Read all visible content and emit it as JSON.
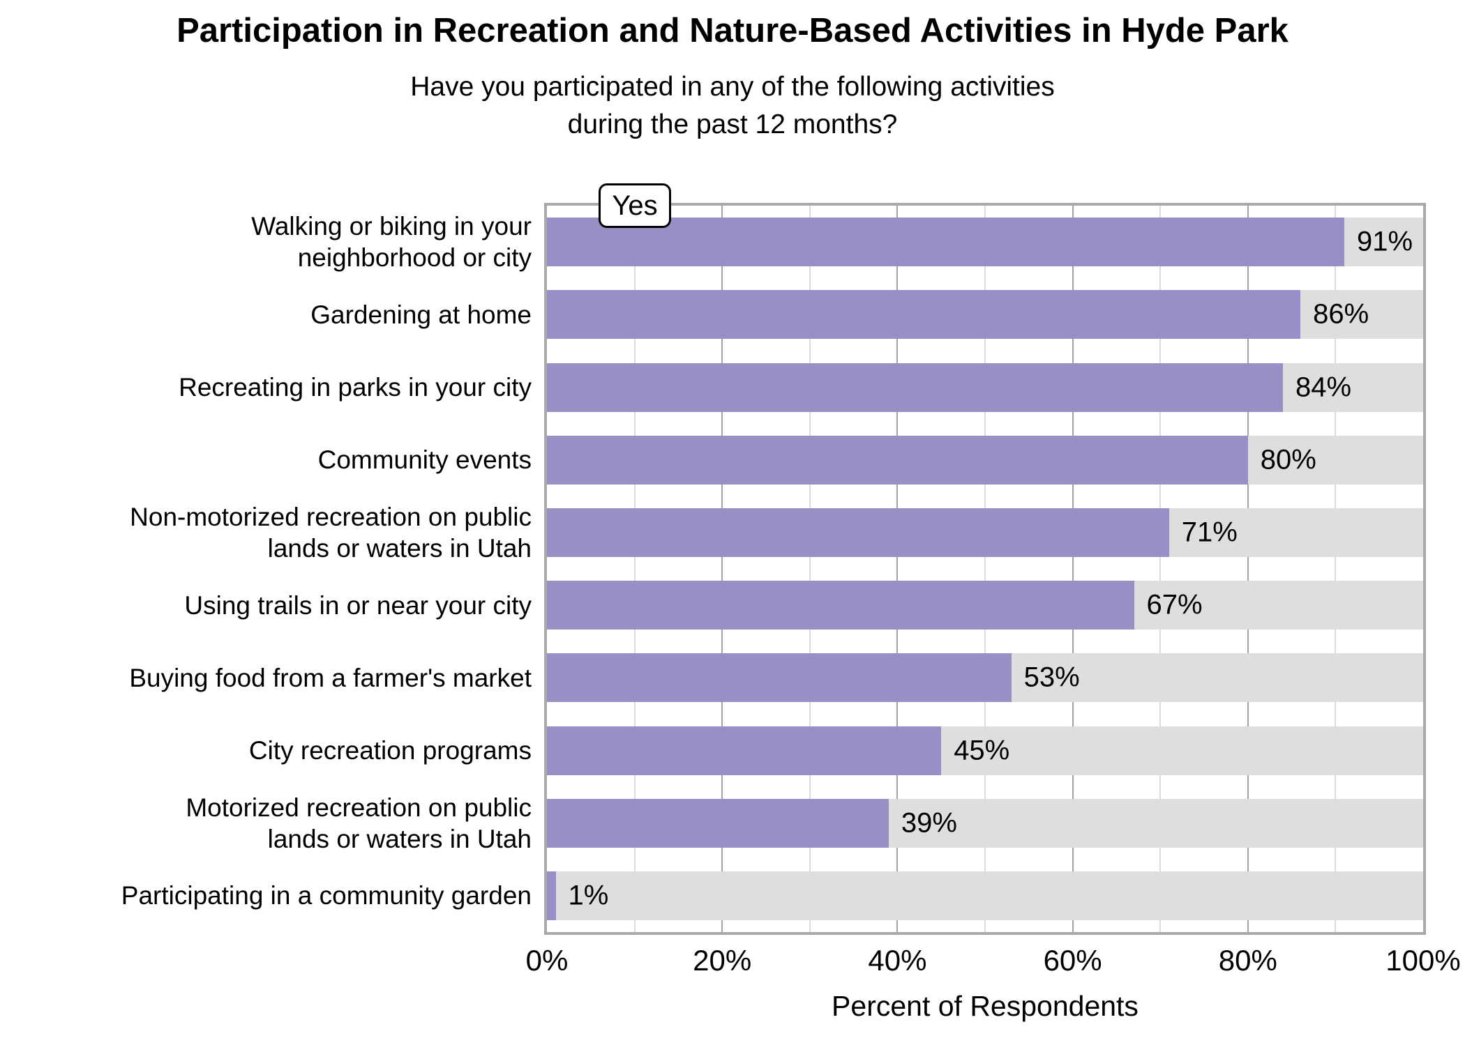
{
  "header": {
    "title": "Participation in Recreation and Nature-Based Activities in Hyde Park",
    "subtitle": "Have you participated in any of the following activities\nduring the past 12 months?"
  },
  "legend": {
    "label": "Yes",
    "position": "top-left-inside-plot"
  },
  "colors": {
    "bar_fill": "#978FC6",
    "bar_track": "#DEDEDE",
    "grid_minor": "#DBDBDB",
    "grid_major": "#A3A3A3",
    "plot_border": "#A9A9A9",
    "text": "#000000"
  },
  "chart_data": {
    "type": "bar",
    "orientation": "horizontal",
    "title": "Participation in Recreation and Nature-Based Activities in Hyde Park",
    "subtitle": "Have you participated in any of the following activities during the past 12 months?",
    "series_name": "Yes",
    "categories": [
      "Walking or biking in your\nneighborhood or city",
      "Gardening at home",
      "Recreating in parks in your city",
      "Community events",
      "Non-motorized recreation on public\nlands or waters in Utah",
      "Using trails in or near your city",
      "Buying food from a farmer's market",
      "City recreation programs",
      "Motorized recreation on public\nlands or waters in Utah",
      "Participating in a community garden"
    ],
    "values": [
      91,
      86,
      84,
      80,
      71,
      67,
      53,
      45,
      39,
      1
    ],
    "value_labels": [
      "91%",
      "86%",
      "84%",
      "80%",
      "71%",
      "67%",
      "53%",
      "45%",
      "39%",
      "1%"
    ],
    "xlabel": "Percent of Respondents",
    "xlim": [
      0,
      100
    ],
    "x_ticks": [
      {
        "label": "0%",
        "value": 0
      },
      {
        "label": "20%",
        "value": 20
      },
      {
        "label": "40%",
        "value": 40
      },
      {
        "label": "60%",
        "value": 60
      },
      {
        "label": "80%",
        "value": 80
      },
      {
        "label": "100%",
        "value": 100
      }
    ],
    "x_minor_gridline_step": 10,
    "x_major_gridline_step": 20,
    "grid": "vertical",
    "legend_position": "top-left inside plot area",
    "bar_label_position": "outside bar end, inside full-width gray track"
  }
}
